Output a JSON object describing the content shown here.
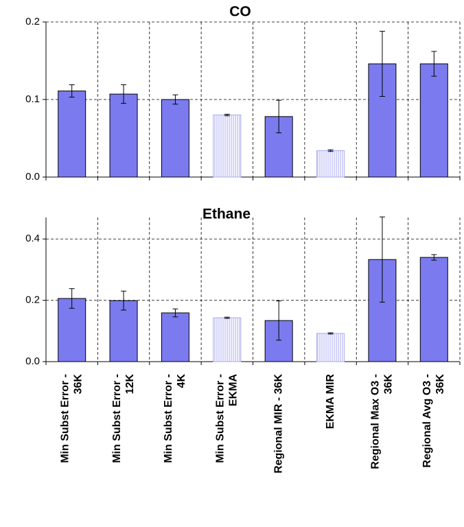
{
  "chart_data": [
    {
      "type": "bar",
      "title": "CO",
      "color": "#7b7bef",
      "hatch_color": "#a8a8f0",
      "values": [
        0.111,
        0.107,
        0.1,
        0.08,
        0.078,
        0.034,
        0.146,
        0.146
      ],
      "errors": [
        0.008,
        0.012,
        0.006,
        0.001,
        0.021,
        0.001,
        0.042,
        0.016
      ],
      "hatched": [
        false,
        false,
        false,
        true,
        false,
        true,
        false,
        false
      ],
      "ylim": [
        0,
        0.2
      ],
      "yticks": [
        {
          "value": 0,
          "label": "0.0"
        },
        0.1,
        0.2
      ],
      "grid": true
    },
    {
      "type": "bar",
      "title": "Ethane",
      "color": "#7b7bef",
      "hatch_color": "#a8a8f0",
      "categories": [
        [
          "Min Subst Error -",
          "36K"
        ],
        [
          "Min Subst Error -",
          "12K"
        ],
        [
          "Min Subst Error -",
          "4K"
        ],
        [
          "Min Subst Error -",
          "EKMA"
        ],
        [
          "Regional MIR - 36K"
        ],
        [
          "EKMA MIR"
        ],
        [
          "Regional Max O3 -",
          "36K"
        ],
        [
          "Regional Avg O3 -",
          "36K"
        ]
      ],
      "values": [
        0.206,
        0.199,
        0.159,
        0.143,
        0.134,
        0.092,
        0.333,
        0.34
      ],
      "errors": [
        0.032,
        0.031,
        0.013,
        0.002,
        0.064,
        0.002,
        0.139,
        0.009
      ],
      "hatched": [
        false,
        false,
        false,
        true,
        false,
        true,
        false,
        false
      ],
      "ylim": [
        0,
        0.47
      ],
      "yticks": [
        {
          "value": 0,
          "label": "0.0"
        },
        {
          "value": 0.2,
          "label": "0.2"
        },
        {
          "value": 0.4,
          "label": "0.4"
        }
      ],
      "grid": true
    }
  ]
}
